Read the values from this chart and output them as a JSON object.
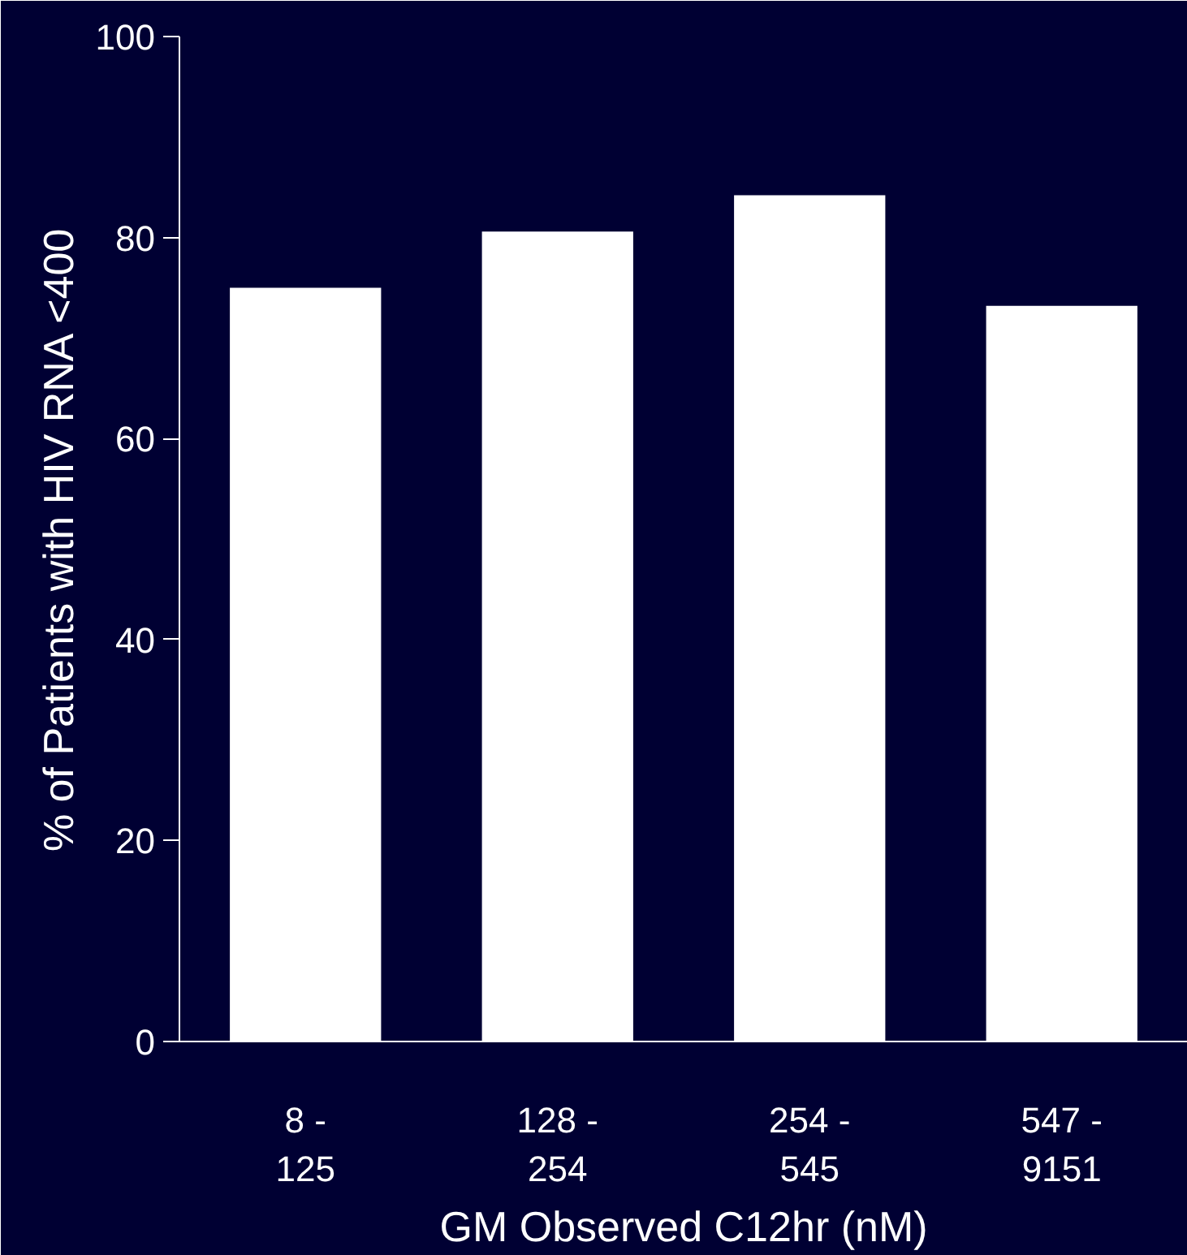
{
  "chart_data": {
    "type": "bar",
    "xlabel": "GM Observed C12hr (nM)",
    "ylabel": "% of Patients with HIV RNA <400",
    "categories": [
      "8 -\n125",
      "128 -\n254",
      "254 -\n545",
      "547 -\n9151"
    ],
    "values": [
      75,
      80.6,
      84.2,
      73.2
    ],
    "color": "#ffffff",
    "ylim": [
      0,
      100
    ],
    "yticks": [
      0,
      20,
      40,
      60,
      80,
      100
    ],
    "grid": false
  }
}
